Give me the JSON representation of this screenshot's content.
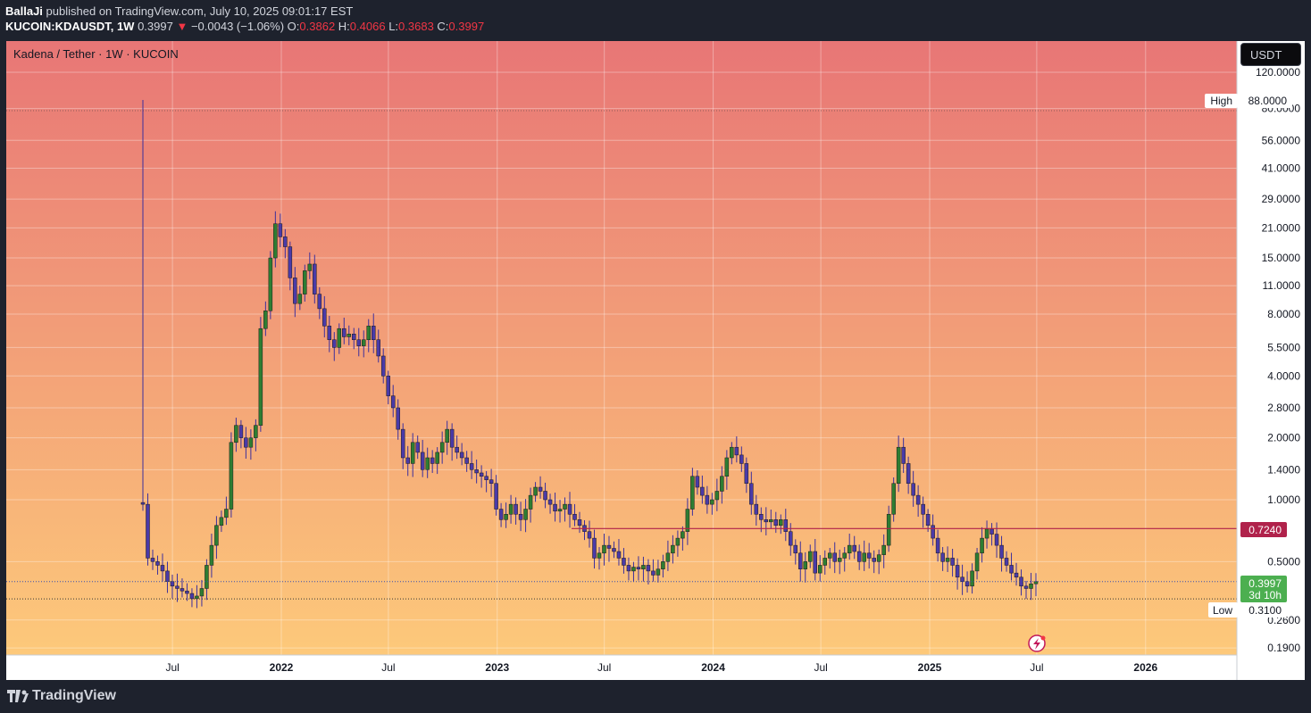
{
  "header": {
    "publisher": "BallaJi",
    "published_text": "published on TradingView.com, July 10, 2025 09:01:17 EST",
    "symbol": "KUCOIN:KDAUSDT, 1W",
    "last_price": "0.3997",
    "change_arrow": "▼",
    "change": "−0.0043 (−1.06%)",
    "o_label": "O:",
    "o": "0.3862",
    "h_label": "H:",
    "h": "0.4066",
    "l_label": "L:",
    "l": "0.3683",
    "c_label": "C:",
    "c": "0.3997"
  },
  "legend_title": "Kadena / Tether · 1W · KUCOIN",
  "currency_button": "USDT",
  "footer_brand": "TradingView",
  "colors": {
    "gradient_top": "#e87676",
    "gradient_bottom": "#fdc97a",
    "candle_up": "#2e7d32",
    "candle_down": "#4a3aa8",
    "wick": "#3d2f9c",
    "resistance_line": "#b0224b",
    "price_line": "#3a4fb0",
    "price_tag": "#4caf50"
  },
  "chart_data": {
    "type": "candlestick",
    "scale": "log",
    "y_ticks": [
      "120.0000",
      "80.0000",
      "56.0000",
      "41.0000",
      "29.0000",
      "21.0000",
      "15.0000",
      "11.0000",
      "8.0000",
      "5.5000",
      "4.0000",
      "2.8000",
      "2.0000",
      "1.4000",
      "1.0000",
      "0.5000",
      "0.2600",
      "0.1900"
    ],
    "x_ticks": [
      {
        "label": "Jul",
        "bold": false,
        "date": "2021-07-01"
      },
      {
        "label": "2022",
        "bold": true,
        "date": "2022-01-01"
      },
      {
        "label": "Jul",
        "bold": false,
        "date": "2022-07-01"
      },
      {
        "label": "2023",
        "bold": true,
        "date": "2023-01-01"
      },
      {
        "label": "Jul",
        "bold": false,
        "date": "2023-07-01"
      },
      {
        "label": "2024",
        "bold": true,
        "date": "2024-01-01"
      },
      {
        "label": "Jul",
        "bold": false,
        "date": "2024-07-01"
      },
      {
        "label": "2025",
        "bold": true,
        "date": "2025-01-01"
      },
      {
        "label": "Jul",
        "bold": false,
        "date": "2025-07-01"
      },
      {
        "label": "2026",
        "bold": true,
        "date": "2026-01-01"
      }
    ],
    "high_label": "High",
    "high_value": "88.0000",
    "low_label": "Low",
    "low_value": "0.3100",
    "resistance_value": "0.7240",
    "current_value": "0.3997",
    "countdown": "3d 10h",
    "series_close": [
      0.95,
      0.52,
      0.5,
      0.48,
      0.45,
      0.4,
      0.38,
      0.37,
      0.36,
      0.35,
      0.33,
      0.34,
      0.37,
      0.48,
      0.6,
      0.75,
      0.82,
      0.9,
      1.9,
      2.3,
      2.0,
      1.8,
      2.0,
      2.3,
      6.8,
      8.3,
      15,
      22,
      19,
      17,
      12,
      9,
      10,
      13,
      14,
      10,
      8.5,
      7,
      6,
      5.5,
      6.8,
      6.2,
      6.4,
      6.0,
      5.6,
      6.0,
      7.0,
      6.0,
      5.0,
      4.0,
      3.2,
      2.8,
      2.2,
      1.6,
      1.5,
      1.9,
      1.7,
      1.4,
      1.6,
      1.5,
      1.7,
      1.9,
      2.2,
      1.8,
      1.7,
      1.6,
      1.5,
      1.4,
      1.35,
      1.3,
      1.25,
      1.2,
      0.9,
      0.8,
      0.85,
      0.95,
      0.85,
      0.8,
      0.9,
      1.05,
      1.15,
      1.1,
      1.0,
      0.95,
      0.88,
      0.9,
      0.95,
      0.85,
      0.8,
      0.75,
      0.7,
      0.65,
      0.52,
      0.55,
      0.6,
      0.58,
      0.56,
      0.52,
      0.48,
      0.45,
      0.47,
      0.46,
      0.48,
      0.45,
      0.43,
      0.46,
      0.5,
      0.55,
      0.6,
      0.65,
      0.7,
      0.9,
      1.3,
      1.15,
      1.05,
      0.95,
      1.0,
      1.1,
      1.3,
      1.6,
      1.8,
      1.65,
      1.5,
      1.2,
      0.95,
      0.85,
      0.8,
      0.78,
      0.8,
      0.75,
      0.8,
      0.7,
      0.6,
      0.55,
      0.46,
      0.5,
      0.56,
      0.44,
      0.48,
      0.52,
      0.55,
      0.5,
      0.52,
      0.55,
      0.6,
      0.56,
      0.5,
      0.55,
      0.52,
      0.5,
      0.54,
      0.6,
      0.85,
      1.2,
      1.8,
      1.5,
      1.2,
      1.05,
      0.95,
      0.85,
      0.75,
      0.65,
      0.55,
      0.5,
      0.52,
      0.48,
      0.42,
      0.4,
      0.38,
      0.45,
      0.55,
      0.65,
      0.72,
      0.68,
      0.6,
      0.52,
      0.48,
      0.44,
      0.42,
      0.38,
      0.37,
      0.39,
      0.3997
    ]
  }
}
